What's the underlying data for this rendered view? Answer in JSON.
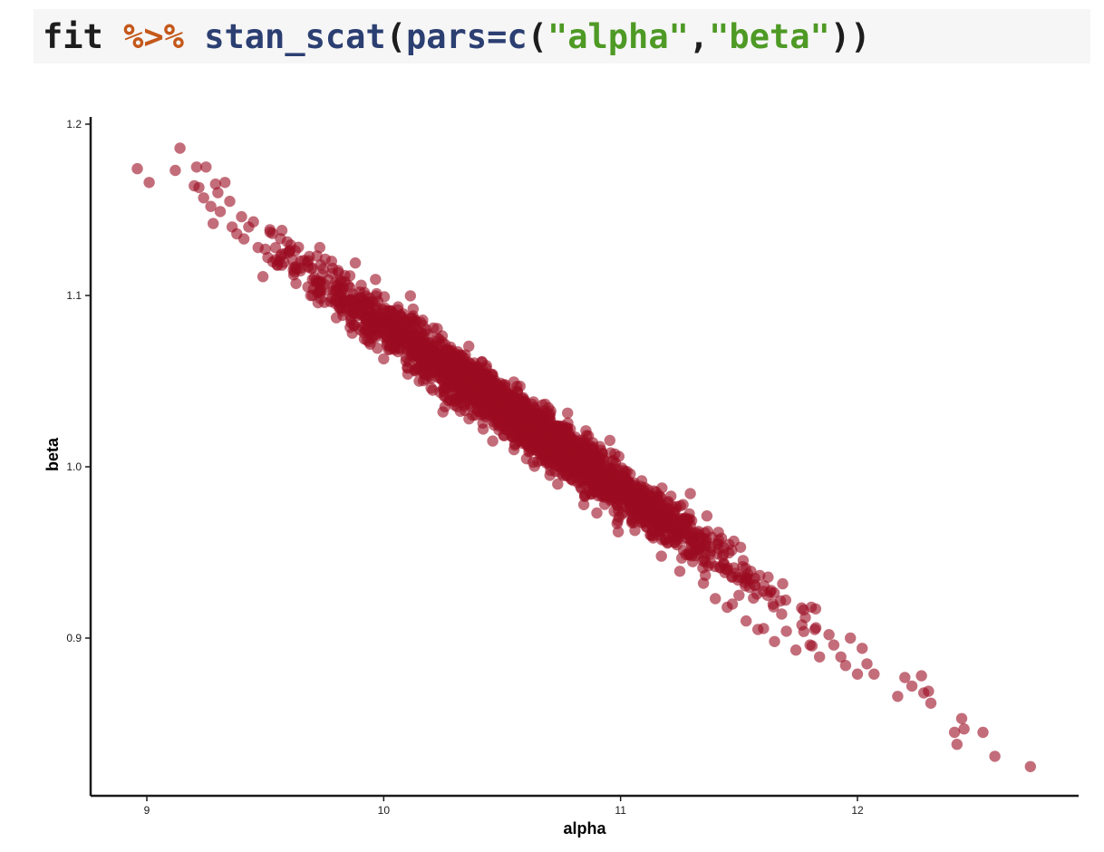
{
  "code": {
    "object": "fit",
    "pipe": "%>%",
    "function": "stan_scat",
    "open_paren": "(",
    "arg_name": "pars",
    "equals": "=",
    "vector_fn": "c",
    "open_paren_inner": "(",
    "string1": "\"alpha\"",
    "comma": ",",
    "string2": "\"beta\"",
    "close_parens": "))"
  },
  "chart_data": {
    "type": "scatter",
    "xlabel": "alpha",
    "ylabel": "beta",
    "xlim": [
      8.75,
      12.95
    ],
    "ylim": [
      0.81,
      1.205
    ],
    "xticks": [
      9,
      10,
      11,
      12
    ],
    "xtick_labels": [
      "9",
      "10",
      "11",
      "12"
    ],
    "yticks": [
      0.9,
      1.0,
      1.1,
      1.2
    ],
    "ytick_labels": [
      "0.9",
      "1.0",
      "1.1",
      "1.2"
    ],
    "grid": false,
    "legend": "none",
    "point_color": "#9b0b22",
    "point_opacity": 0.6,
    "relationship": "strong negative linear correlation; dense cloud centered near alpha 10.5, beta 1.035",
    "points": [
      [
        8.96,
        1.174
      ],
      [
        9.01,
        1.166
      ],
      [
        9.12,
        1.173
      ],
      [
        9.14,
        1.186
      ],
      [
        9.2,
        1.164
      ],
      [
        9.21,
        1.175
      ],
      [
        9.22,
        1.163
      ],
      [
        9.25,
        1.175
      ],
      [
        9.24,
        1.157
      ],
      [
        9.27,
        1.152
      ],
      [
        9.28,
        1.142
      ],
      [
        9.29,
        1.165
      ],
      [
        9.3,
        1.16
      ],
      [
        9.31,
        1.149
      ],
      [
        9.33,
        1.166
      ],
      [
        9.35,
        1.155
      ],
      [
        9.36,
        1.14
      ],
      [
        9.38,
        1.136
      ],
      [
        9.4,
        1.146
      ],
      [
        9.41,
        1.133
      ],
      [
        9.43,
        1.14
      ],
      [
        9.45,
        1.143
      ],
      [
        9.47,
        1.128
      ],
      [
        9.49,
        1.111
      ],
      [
        9.5,
        1.127
      ],
      [
        9.52,
        1.137
      ],
      [
        9.55,
        1.118
      ],
      [
        9.57,
        1.138
      ],
      [
        9.6,
        1.125
      ],
      [
        9.62,
        1.112
      ],
      [
        9.63,
        1.107
      ],
      [
        9.65,
        1.116
      ],
      [
        9.68,
        1.105
      ],
      [
        9.7,
        1.1
      ],
      [
        9.73,
        1.128
      ],
      [
        9.75,
        1.096
      ],
      [
        9.78,
        1.12
      ],
      [
        9.8,
        1.087
      ],
      [
        9.82,
        1.108
      ],
      [
        9.85,
        1.093
      ],
      [
        9.88,
        1.119
      ],
      [
        9.9,
        1.08
      ],
      [
        9.93,
        1.095
      ],
      [
        9.95,
        1.075
      ],
      [
        9.97,
        1.101
      ],
      [
        10.0,
        1.063
      ],
      [
        10.02,
        1.091
      ],
      [
        10.05,
        1.07
      ],
      [
        10.07,
        1.083
      ],
      [
        10.1,
        1.058
      ],
      [
        10.12,
        1.076
      ],
      [
        10.15,
        1.05
      ],
      [
        10.18,
        1.08
      ],
      [
        10.2,
        1.046
      ],
      [
        10.25,
        1.032
      ],
      [
        10.28,
        1.062
      ],
      [
        10.3,
        1.036
      ],
      [
        10.33,
        1.059
      ],
      [
        10.36,
        1.028
      ],
      [
        10.4,
        1.046
      ],
      [
        10.42,
        1.022
      ],
      [
        10.45,
        1.041
      ],
      [
        10.5,
        1.03
      ],
      [
        10.55,
        1.01
      ],
      [
        10.58,
        1.038
      ],
      [
        10.6,
        1.015
      ],
      [
        10.65,
        1.003
      ],
      [
        10.68,
        1.031
      ],
      [
        10.7,
        1.009
      ],
      [
        10.75,
        0.996
      ],
      [
        10.78,
        1.02
      ],
      [
        10.8,
        0.992
      ],
      [
        10.85,
        0.984
      ],
      [
        10.88,
        1.005
      ],
      [
        10.9,
        0.973
      ],
      [
        10.95,
        0.986
      ],
      [
        10.99,
        0.962
      ],
      [
        11.02,
        0.991
      ],
      [
        11.05,
        0.969
      ],
      [
        11.1,
        0.975
      ],
      [
        11.13,
        0.96
      ],
      [
        11.17,
        0.982
      ],
      [
        11.2,
        0.956
      ],
      [
        11.25,
        0.939
      ],
      [
        11.28,
        0.968
      ],
      [
        11.3,
        0.948
      ],
      [
        11.35,
        0.932
      ],
      [
        11.38,
        0.953
      ],
      [
        11.4,
        0.923
      ],
      [
        11.42,
        0.941
      ],
      [
        11.45,
        0.918
      ],
      [
        11.47,
        0.936
      ],
      [
        11.5,
        0.925
      ],
      [
        11.53,
        0.91
      ],
      [
        11.55,
        0.939
      ],
      [
        11.58,
        0.905
      ],
      [
        11.62,
        0.925
      ],
      [
        11.65,
        0.898
      ],
      [
        11.68,
        0.914
      ],
      [
        11.7,
        0.904
      ],
      [
        11.74,
        0.893
      ],
      [
        11.78,
        0.912
      ],
      [
        11.8,
        0.896
      ],
      [
        11.82,
        0.905
      ],
      [
        11.84,
        0.889
      ],
      [
        11.88,
        0.902
      ],
      [
        11.9,
        0.896
      ],
      [
        11.93,
        0.889
      ],
      [
        11.95,
        0.884
      ],
      [
        11.97,
        0.9
      ],
      [
        12.0,
        0.879
      ],
      [
        12.02,
        0.894
      ],
      [
        12.04,
        0.885
      ],
      [
        12.07,
        0.879
      ],
      [
        12.17,
        0.866
      ],
      [
        12.2,
        0.877
      ],
      [
        12.23,
        0.872
      ],
      [
        12.27,
        0.878
      ],
      [
        12.28,
        0.868
      ],
      [
        12.3,
        0.869
      ],
      [
        12.31,
        0.862
      ],
      [
        12.41,
        0.845
      ],
      [
        12.42,
        0.838
      ],
      [
        12.44,
        0.853
      ],
      [
        12.45,
        0.847
      ],
      [
        12.53,
        0.845
      ],
      [
        12.58,
        0.831
      ],
      [
        12.73,
        0.825
      ]
    ],
    "dense_cloud": {
      "n": 2600,
      "alpha_range": [
        9.5,
        11.85
      ],
      "slope": -0.0965,
      "intercept": 2.0485,
      "residual_sd": 0.0075,
      "alpha_center": 10.6,
      "alpha_sd": 0.42
    }
  }
}
